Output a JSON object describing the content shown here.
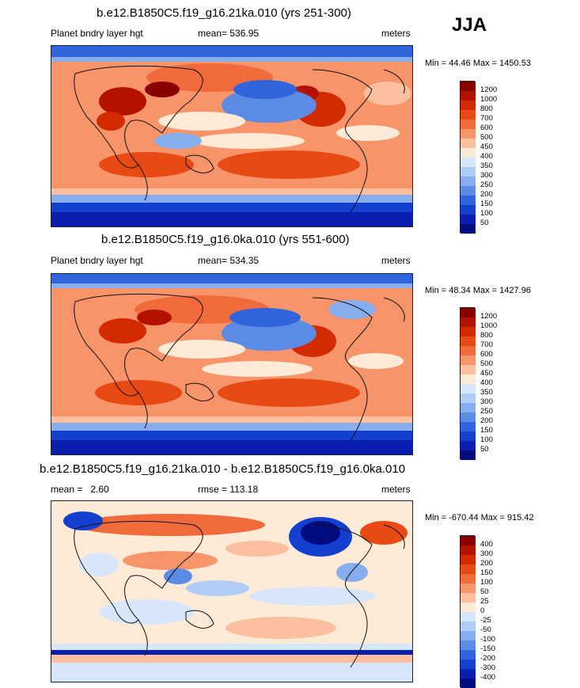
{
  "season": "JJA",
  "panels": [
    {
      "title": "b.e12.B1850C5.f19_g16.21ka.010 (yrs 251-300)",
      "left_label": "Planet bndry layer hgt",
      "center_label": "mean= 536.95",
      "right_label": "meters",
      "minmax": "Min =  44.46 Max = 1450.53",
      "colorbar": {
        "labels": [
          "1200",
          "1000",
          "800",
          "700",
          "600",
          "500",
          "450",
          "400",
          "350",
          "300",
          "250",
          "200",
          "150",
          "100",
          "50"
        ],
        "colors": [
          "#880000",
          "#b41200",
          "#d42a00",
          "#e84a14",
          "#f06a3c",
          "#f7946a",
          "#fcc0a0",
          "#fdebd8",
          "#d8e6fa",
          "#b0cdf5",
          "#86aeee",
          "#5b8be5",
          "#3064dc",
          "#143fcf",
          "#0a1fb0",
          "#000c80"
        ]
      }
    },
    {
      "title": "b.e12.B1850C5.f19_g16.0ka.010 (yrs 551-600)",
      "left_label": "Planet bndry layer hgt",
      "center_label": "mean= 534.35",
      "right_label": "meters",
      "minmax": "Min =  48.34 Max = 1427.96",
      "colorbar": {
        "labels": [
          "1200",
          "1000",
          "800",
          "700",
          "600",
          "500",
          "450",
          "400",
          "350",
          "300",
          "250",
          "200",
          "150",
          "100",
          "50"
        ],
        "colors": [
          "#880000",
          "#b41200",
          "#d42a00",
          "#e84a14",
          "#f06a3c",
          "#f7946a",
          "#fcc0a0",
          "#fdebd8",
          "#d8e6fa",
          "#b0cdf5",
          "#86aeee",
          "#5b8be5",
          "#3064dc",
          "#143fcf",
          "#0a1fb0",
          "#000c80"
        ]
      }
    },
    {
      "title": "b.e12.B1850C5.f19_g16.21ka.010 - b.e12.B1850C5.f19_g16.0ka.010",
      "left_label": "mean =   2.60",
      "center_label": "rmse = 113.18",
      "right_label": "meters",
      "minmax": "Min = -670.44 Max = 915.42",
      "colorbar": {
        "labels": [
          "400",
          "300",
          "200",
          "150",
          "100",
          "50",
          "25",
          "0",
          "-25",
          "-50",
          "-100",
          "-150",
          "-200",
          "-300",
          "-400"
        ],
        "colors": [
          "#880000",
          "#b41200",
          "#d42a00",
          "#e84a14",
          "#f06a3c",
          "#f7946a",
          "#fcc0a0",
          "#fdebd8",
          "#d8e6fa",
          "#b0cdf5",
          "#86aeee",
          "#5b8be5",
          "#3064dc",
          "#143fcf",
          "#0a1fb0",
          "#000c80"
        ]
      }
    }
  ]
}
